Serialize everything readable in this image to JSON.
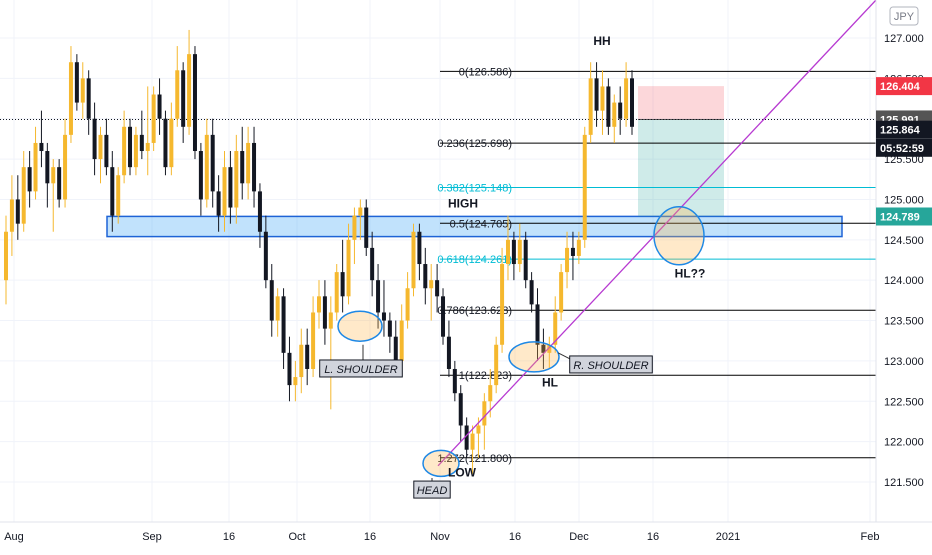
{
  "chart_data": {
    "type": "candlestick",
    "currency_badge": "JPY",
    "y_ticks": [
      "127.000",
      "126.500",
      "126.000",
      "125.500",
      "125.000",
      "124.500",
      "124.000",
      "123.500",
      "123.000",
      "122.500",
      "122.000",
      "121.500"
    ],
    "x_ticks": [
      "Aug",
      "Sep",
      "16",
      "Oct",
      "16",
      "Nov",
      "16",
      "Dec",
      "16",
      "2021",
      "Feb"
    ],
    "ylim": [
      121.0,
      127.3
    ],
    "fib_levels": [
      {
        "label": "0(126.586)",
        "value": 126.586,
        "color": "#000000"
      },
      {
        "label": "0.236(125.698)",
        "value": 125.698,
        "color": "#000000"
      },
      {
        "label": "0.382(125.148)",
        "value": 125.148,
        "color": "#00bcd4"
      },
      {
        "label": "0.5(124.705)",
        "value": 124.705,
        "color": "#000000"
      },
      {
        "label": "0.618(124.261)",
        "value": 124.261,
        "color": "#00bcd4"
      },
      {
        "label": "0.786(123.628)",
        "value": 123.628,
        "color": "#000000"
      },
      {
        "label": "1(122.823)",
        "value": 122.823,
        "color": "#000000"
      },
      {
        "label": "1.272(121.800)",
        "value": 121.8,
        "color": "#000000"
      }
    ],
    "price_labels": [
      {
        "text": "126.404",
        "value": 126.404,
        "bg": "#f23645",
        "fg": "#ffffff"
      },
      {
        "text": "125.991",
        "value": 125.991,
        "bg": "#555555",
        "fg": "#ffffff"
      },
      {
        "text": "125.864",
        "value": 125.864,
        "bg": "#131722",
        "fg": "#ffffff"
      },
      {
        "text": "05:52:59",
        "value": 125.64,
        "bg": "#131722",
        "fg": "#ffffff"
      },
      {
        "text": "124.789",
        "value": 124.789,
        "bg": "#26a69a",
        "fg": "#ffffff"
      }
    ],
    "annotations": [
      {
        "text": "HH",
        "value": 126.96,
        "boxed": false
      },
      {
        "text": "HIGH",
        "value": 124.95,
        "boxed": false
      },
      {
        "text": "HL??",
        "value": 124.08,
        "boxed": false
      },
      {
        "text": "L. SHOULDER",
        "value": 122.9,
        "boxed": true
      },
      {
        "text": "R. SHOULDER",
        "value": 122.95,
        "boxed": true
      },
      {
        "text": "HL",
        "value": 122.73,
        "boxed": false
      },
      {
        "text": "LOW",
        "value": 121.62,
        "boxed": false
      },
      {
        "text": "HEAD",
        "value": 121.4,
        "boxed": true
      }
    ],
    "demand_zone": {
      "top": 124.79,
      "bottom": 124.54
    },
    "trade": {
      "entry": 125.991,
      "stop": 126.404,
      "target": 124.789
    },
    "trendline": {
      "from": 121.7,
      "to": 127.3
    },
    "candles": [
      [
        124.0,
        124.8,
        123.7,
        124.6
      ],
      [
        124.6,
        125.3,
        124.3,
        125.0
      ],
      [
        125.0,
        125.3,
        124.5,
        124.7
      ],
      [
        124.7,
        125.6,
        124.6,
        125.4
      ],
      [
        125.4,
        125.6,
        124.9,
        125.1
      ],
      [
        125.1,
        125.9,
        125.0,
        125.7
      ],
      [
        125.7,
        126.1,
        125.4,
        125.6
      ],
      [
        125.6,
        125.7,
        124.9,
        125.2
      ],
      [
        125.2,
        125.5,
        124.6,
        125.4
      ],
      [
        125.4,
        125.5,
        124.9,
        125.0
      ],
      [
        125.0,
        126.0,
        124.9,
        125.8
      ],
      [
        125.8,
        126.9,
        125.7,
        126.7
      ],
      [
        126.7,
        126.8,
        126.1,
        126.2
      ],
      [
        126.2,
        126.7,
        126.0,
        126.5
      ],
      [
        126.5,
        126.6,
        125.8,
        126.0
      ],
      [
        126.0,
        126.2,
        125.3,
        125.5
      ],
      [
        125.5,
        125.9,
        125.2,
        125.8
      ],
      [
        125.8,
        126.0,
        125.3,
        125.4
      ],
      [
        125.4,
        125.6,
        124.6,
        124.8
      ],
      [
        124.8,
        125.4,
        124.7,
        125.3
      ],
      [
        125.3,
        126.1,
        125.2,
        125.9
      ],
      [
        125.9,
        126.0,
        125.3,
        125.4
      ],
      [
        125.4,
        125.9,
        125.3,
        125.8
      ],
      [
        125.8,
        126.1,
        125.5,
        125.6
      ],
      [
        125.6,
        126.4,
        125.3,
        125.7
      ],
      [
        125.7,
        126.4,
        125.6,
        126.3
      ],
      [
        126.3,
        126.5,
        125.8,
        126.0
      ],
      [
        126.0,
        126.1,
        125.3,
        125.4
      ],
      [
        125.4,
        126.2,
        125.3,
        126.0
      ],
      [
        126.0,
        126.9,
        125.9,
        126.6
      ],
      [
        126.6,
        126.7,
        125.7,
        125.9
      ],
      [
        125.9,
        127.1,
        125.8,
        126.8
      ],
      [
        126.8,
        126.9,
        125.5,
        125.6
      ],
      [
        125.6,
        125.7,
        124.8,
        125.0
      ],
      [
        125.0,
        126.0,
        124.9,
        125.8
      ],
      [
        125.8,
        126.0,
        124.9,
        125.1
      ],
      [
        125.1,
        125.3,
        124.6,
        124.8
      ],
      [
        124.8,
        125.6,
        124.6,
        125.4
      ],
      [
        125.4,
        125.6,
        124.7,
        124.9
      ],
      [
        124.9,
        125.8,
        124.7,
        125.6
      ],
      [
        125.6,
        125.9,
        125.0,
        125.2
      ],
      [
        125.2,
        125.9,
        125.0,
        125.7
      ],
      [
        125.7,
        125.9,
        124.9,
        125.1
      ],
      [
        125.1,
        125.2,
        124.4,
        124.6
      ],
      [
        124.6,
        124.8,
        123.9,
        124.0
      ],
      [
        124.0,
        124.2,
        123.3,
        123.5
      ],
      [
        123.5,
        123.9,
        123.3,
        123.8
      ],
      [
        123.8,
        123.9,
        122.9,
        123.1
      ],
      [
        123.1,
        123.3,
        122.5,
        122.7
      ],
      [
        122.7,
        123.0,
        122.5,
        122.8
      ],
      [
        122.8,
        123.4,
        122.6,
        123.2
      ],
      [
        123.2,
        123.4,
        122.7,
        122.9
      ],
      [
        122.9,
        123.8,
        122.8,
        123.6
      ],
      [
        123.6,
        124.0,
        123.4,
        123.8
      ],
      [
        123.8,
        124.0,
        123.2,
        123.4
      ],
      [
        123.4,
        123.8,
        122.4,
        123.6
      ],
      [
        123.6,
        124.2,
        123.5,
        124.1
      ],
      [
        124.1,
        124.5,
        123.6,
        123.8
      ],
      [
        123.8,
        124.7,
        123.7,
        124.5
      ],
      [
        124.5,
        124.9,
        124.2,
        124.8
      ],
      [
        124.8,
        125.0,
        124.5,
        124.9
      ],
      [
        124.9,
        125.0,
        124.3,
        124.4
      ],
      [
        124.4,
        124.6,
        123.8,
        124.0
      ],
      [
        124.0,
        124.2,
        123.4,
        123.6
      ],
      [
        123.6,
        124.0,
        123.3,
        123.5
      ],
      [
        123.5,
        123.6,
        123.1,
        123.3
      ],
      [
        123.3,
        123.5,
        122.8,
        123.0
      ],
      [
        123.0,
        123.7,
        122.9,
        123.5
      ],
      [
        123.5,
        124.1,
        123.4,
        123.9
      ],
      [
        123.9,
        124.7,
        123.8,
        124.6
      ],
      [
        124.6,
        124.7,
        124.0,
        124.2
      ],
      [
        124.2,
        124.4,
        123.7,
        123.9
      ],
      [
        123.9,
        124.2,
        123.5,
        124.0
      ],
      [
        124.0,
        124.2,
        123.6,
        123.8
      ],
      [
        123.8,
        123.9,
        123.2,
        123.3
      ],
      [
        123.3,
        123.5,
        122.8,
        122.9
      ],
      [
        122.9,
        123.0,
        122.5,
        122.6
      ],
      [
        122.6,
        122.7,
        122.0,
        122.2
      ],
      [
        122.2,
        122.3,
        121.8,
        121.9
      ],
      [
        121.9,
        122.2,
        121.6,
        122.1
      ],
      [
        122.1,
        122.3,
        121.8,
        122.2
      ],
      [
        122.2,
        122.6,
        121.9,
        122.5
      ],
      [
        122.5,
        122.9,
        122.3,
        122.7
      ],
      [
        122.7,
        123.3,
        122.6,
        123.2
      ],
      [
        123.2,
        124.4,
        123.1,
        124.2
      ],
      [
        124.2,
        124.8,
        124.0,
        124.5
      ],
      [
        124.5,
        124.6,
        124.0,
        124.2
      ],
      [
        124.2,
        124.7,
        124.1,
        124.5
      ],
      [
        124.5,
        124.6,
        123.9,
        124.0
      ],
      [
        124.0,
        124.1,
        123.6,
        123.7
      ],
      [
        123.7,
        123.9,
        123.0,
        123.2
      ],
      [
        123.2,
        123.4,
        122.9,
        123.1
      ],
      [
        123.1,
        123.3,
        122.9,
        123.2
      ],
      [
        123.2,
        123.8,
        123.1,
        123.6
      ],
      [
        123.6,
        124.2,
        123.5,
        124.1
      ],
      [
        124.1,
        124.6,
        123.9,
        124.4
      ],
      [
        124.4,
        124.6,
        124.0,
        124.3
      ],
      [
        124.3,
        124.6,
        124.2,
        124.5
      ],
      [
        124.5,
        125.9,
        124.4,
        125.8
      ],
      [
        125.8,
        126.7,
        125.7,
        126.5
      ],
      [
        126.5,
        126.7,
        125.9,
        126.1
      ],
      [
        126.1,
        126.6,
        125.8,
        126.4
      ],
      [
        126.4,
        126.5,
        125.8,
        125.9
      ],
      [
        125.9,
        126.3,
        125.7,
        126.2
      ],
      [
        126.2,
        126.4,
        125.8,
        126.0
      ],
      [
        126.0,
        126.7,
        125.9,
        126.5
      ],
      [
        126.5,
        126.6,
        125.8,
        125.9
      ]
    ]
  }
}
